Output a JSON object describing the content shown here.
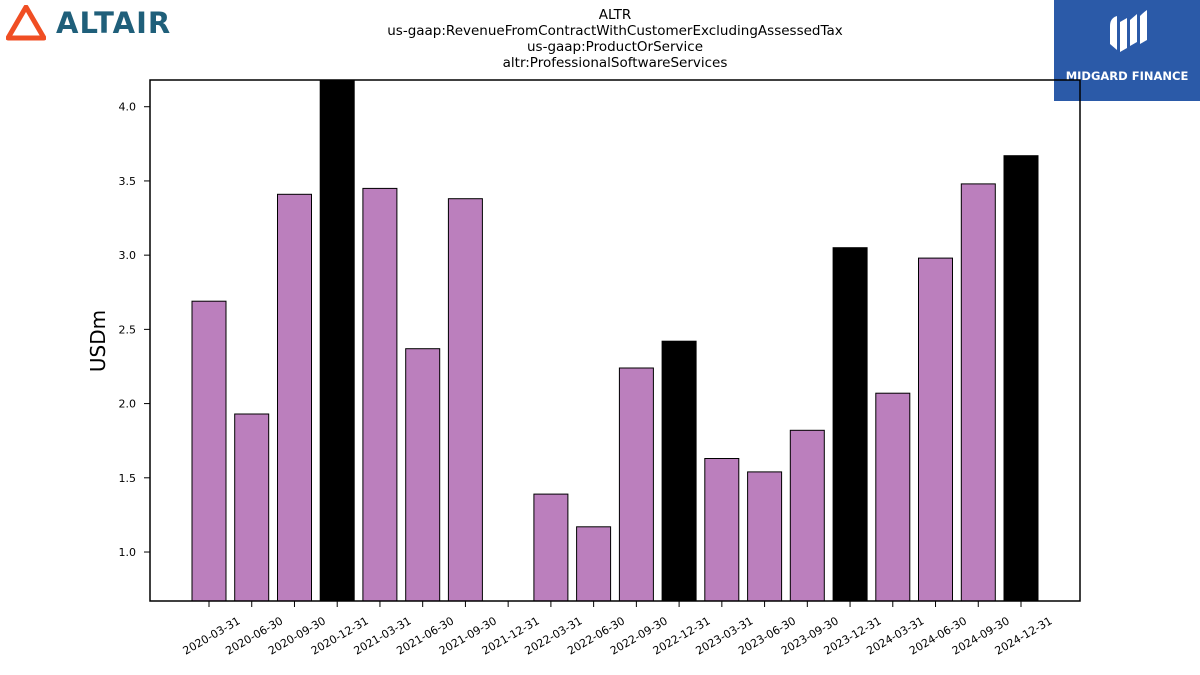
{
  "header": {
    "brand": "ALTAIR",
    "title_lines": [
      "ALTR",
      "us-gaap:RevenueFromContractWithCustomerExcludingAssessedTax",
      "us-gaap:ProductOrService",
      "altr:ProfessionalSoftwareServices"
    ],
    "badge": "MIDGARD FINANCE"
  },
  "colors": {
    "bar_default": "#bb7fbd",
    "bar_highlight": "#000000",
    "badge_bg": "#2b5aa8",
    "brand_text": "#1f5f7a",
    "brand_icon": "#f04e23"
  },
  "icons": {
    "brand": "altair-logo-icon",
    "badge": "midgard-logo-icon"
  },
  "chart_data": {
    "type": "bar",
    "ylabel": "USDm",
    "xlabel": "",
    "ylim": [
      0.67,
      4.18
    ],
    "yticks": [
      "1.0",
      "1.5",
      "2.0",
      "2.5",
      "3.0",
      "3.5",
      "4.0"
    ],
    "grid": false,
    "categories": [
      "2020-03-31",
      "2020-06-30",
      "2020-09-30",
      "2020-12-31",
      "2021-03-31",
      "2021-06-30",
      "2021-09-30",
      "2021-12-31",
      "2022-03-31",
      "2022-06-30",
      "2022-09-30",
      "2022-12-31",
      "2023-03-31",
      "2023-06-30",
      "2023-09-30",
      "2023-12-31",
      "2024-03-31",
      "2024-06-30",
      "2024-09-30",
      "2024-12-31"
    ],
    "values": [
      2.69,
      1.93,
      3.41,
      4.18,
      3.45,
      2.37,
      3.38,
      null,
      1.39,
      1.17,
      2.24,
      2.42,
      1.63,
      1.54,
      1.82,
      3.05,
      2.07,
      2.98,
      3.48,
      3.67
    ],
    "highlight": [
      false,
      false,
      false,
      true,
      false,
      false,
      false,
      false,
      false,
      false,
      false,
      true,
      false,
      false,
      false,
      true,
      false,
      false,
      false,
      true
    ]
  }
}
